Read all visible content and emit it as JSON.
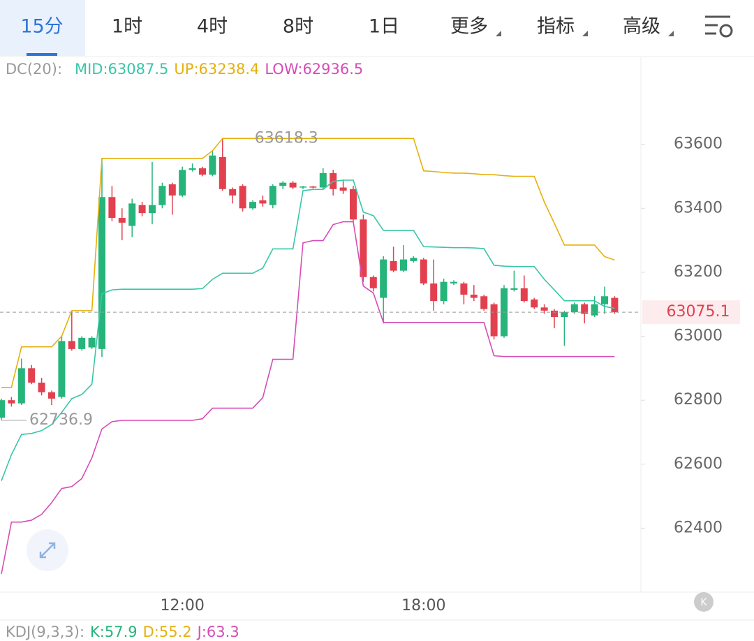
{
  "tabs": [
    "15分",
    "1时",
    "4时",
    "8时",
    "1日",
    "更多",
    "指标",
    "高级"
  ],
  "chart_data": {
    "type": "candlestick",
    "indicator_label": "DC(20):",
    "categories": [
      null,
      null,
      null,
      null,
      null,
      null,
      null,
      null,
      null,
      null,
      null,
      null,
      null,
      null,
      null,
      null,
      null,
      null,
      "12:00",
      null,
      null,
      null,
      null,
      null,
      null,
      null,
      null,
      null,
      null,
      null,
      null,
      null,
      null,
      null,
      null,
      null,
      null,
      null,
      null,
      null,
      null,
      null,
      "18:00",
      null,
      null,
      null,
      null,
      null,
      null,
      null,
      null,
      null,
      null,
      null,
      null,
      null,
      null,
      null,
      null,
      null,
      null,
      null
    ],
    "open": [
      62745,
      62800,
      62790,
      62900,
      62855,
      62825,
      62810,
      62985,
      62960,
      62965,
      62960,
      63435,
      63370,
      63345,
      63410,
      63385,
      63410,
      63475,
      63440,
      63520,
      63525,
      63505,
      63560,
      63460,
      63470,
      63400,
      63425,
      63410,
      63470,
      63480,
      63465,
      63468,
      63465,
      63510,
      63465,
      63460,
      63365,
      63185,
      63120,
      63235,
      63205,
      63235,
      63240,
      63165,
      63110,
      63165,
      63165,
      63130,
      63125,
      63100,
      63000,
      63145,
      63150,
      63115,
      63090,
      63080,
      63060,
      63075,
      63100,
      63065,
      63100,
      63120
    ],
    "high": [
      62805,
      62810,
      62930,
      62910,
      62870,
      62830,
      63000,
      63080,
      63000,
      63000,
      63555,
      63470,
      63400,
      63430,
      63420,
      63545,
      63480,
      63480,
      63530,
      63540,
      63530,
      63580,
      63618.3,
      63465,
      63475,
      63425,
      63440,
      63475,
      63485,
      63485,
      63470,
      63470,
      63525,
      63520,
      63490,
      63470,
      63380,
      63190,
      63250,
      63280,
      63285,
      63250,
      63245,
      63240,
      63180,
      63175,
      63170,
      63160,
      63130,
      63105,
      63160,
      63205,
      63190,
      63120,
      63100,
      63085,
      63080,
      63105,
      63105,
      63125,
      63155,
      63125
    ],
    "low": [
      62736.9,
      62780,
      62785,
      62850,
      62815,
      62785,
      62805,
      62955,
      62955,
      62960,
      62935,
      63360,
      63300,
      63310,
      63375,
      63350,
      63400,
      63380,
      63435,
      63515,
      63500,
      63500,
      63455,
      63415,
      63390,
      63395,
      63405,
      63400,
      63460,
      63460,
      63460,
      63462,
      63460,
      63440,
      63445,
      63360,
      63170,
      63140,
      63040,
      63200,
      63200,
      63230,
      63160,
      63080,
      63100,
      63160,
      63100,
      63110,
      63080,
      62990,
      62995,
      63140,
      63105,
      63085,
      63070,
      63025,
      62970,
      63070,
      63040,
      63060,
      63070,
      63070
    ],
    "close": [
      62800,
      62790,
      62900,
      62855,
      62825,
      62805,
      62985,
      62960,
      62995,
      62995,
      63435,
      63370,
      63355,
      63415,
      63385,
      63410,
      63470,
      63440,
      63520,
      63525,
      63505,
      63565,
      63460,
      63440,
      63400,
      63420,
      63415,
      63470,
      63480,
      63465,
      63468,
      63465,
      63510,
      63460,
      63455,
      63365,
      63185,
      63150,
      63240,
      63205,
      63240,
      63245,
      63165,
      63110,
      63170,
      63170,
      63130,
      63120,
      63085,
      63000,
      63150,
      63150,
      63110,
      63090,
      63080,
      63060,
      63075,
      63100,
      63070,
      63100,
      63125,
      63075.1
    ],
    "up_color": "#26b47b",
    "down_color": "#e3404f",
    "series": [
      {
        "name": "MID:63087.5",
        "color": "#38c6a8",
        "values": [
          62548,
          62630,
          62693,
          62696,
          62705,
          62724,
          62762,
          62805,
          62818,
          62850,
          63133,
          63145,
          63147,
          63147,
          63147,
          63147,
          63147,
          63147,
          63147,
          63147,
          63149,
          63178,
          63197,
          63197,
          63197,
          63197,
          63213,
          63273,
          63273,
          63273,
          63455,
          63459,
          63459,
          63484,
          63488,
          63488,
          63388,
          63377,
          63331,
          63331,
          63331,
          63331,
          63280,
          63279,
          63278,
          63277,
          63277,
          63276,
          63274,
          63222,
          63219,
          63218,
          63218,
          63218,
          63178,
          63145,
          63111,
          63111,
          63111,
          63111,
          63093,
          63087.5
        ]
      },
      {
        "name": "UP:63238.4",
        "color": "#e6b00c",
        "values": [
          62840,
          62840,
          62967,
          62967,
          62967,
          62967,
          63000,
          63080,
          63080,
          63080,
          63556,
          63556,
          63556,
          63556,
          63556,
          63556,
          63556,
          63556,
          63556,
          63556,
          63556,
          63580,
          63618.3,
          63618.3,
          63618.3,
          63618.3,
          63618.3,
          63618.3,
          63618.3,
          63618.3,
          63618.3,
          63618.3,
          63618.3,
          63618.3,
          63618.3,
          63618.3,
          63618.3,
          63618.3,
          63618.3,
          63618.3,
          63618.3,
          63618.3,
          63517,
          63515,
          63512,
          63510,
          63510,
          63508,
          63505,
          63505,
          63502,
          63500,
          63500,
          63500,
          63420,
          63353,
          63285,
          63285,
          63285,
          63285,
          63249,
          63238.4
        ]
      },
      {
        "name": "LOW:62936.5",
        "color": "#d64db6",
        "values": [
          62257,
          62419,
          62419,
          62425,
          62443,
          62480,
          62524,
          62530,
          62555,
          62620,
          62710,
          62733,
          62737,
          62737,
          62737,
          62737,
          62737,
          62737,
          62737,
          62737,
          62742,
          62775,
          62775,
          62775,
          62775,
          62775,
          62808,
          62928,
          62928,
          62928,
          63292,
          63299,
          63299,
          63349,
          63358,
          63358,
          63157,
          63135,
          63043,
          63043,
          63043,
          63043,
          63043,
          63043,
          63043,
          63043,
          63043,
          63043,
          63043,
          62939,
          62936.5,
          62936.5,
          62936.5,
          62936.5,
          62936.5,
          62936.5,
          62936.5,
          62936.5,
          62936.5,
          62936.5,
          62936.5,
          62936.5
        ]
      }
    ],
    "high_marker": 63618.3,
    "low_marker": 62736.9,
    "last_price": 63075.1,
    "ylim": [
      62200,
      63870
    ],
    "yticks": [
      62400,
      62600,
      62800,
      63000,
      63200,
      63400,
      63600
    ],
    "kdj_legend": [
      "KDJ(9,3,3):",
      "K:57.9",
      "D:55.2",
      "J:63.3"
    ]
  }
}
